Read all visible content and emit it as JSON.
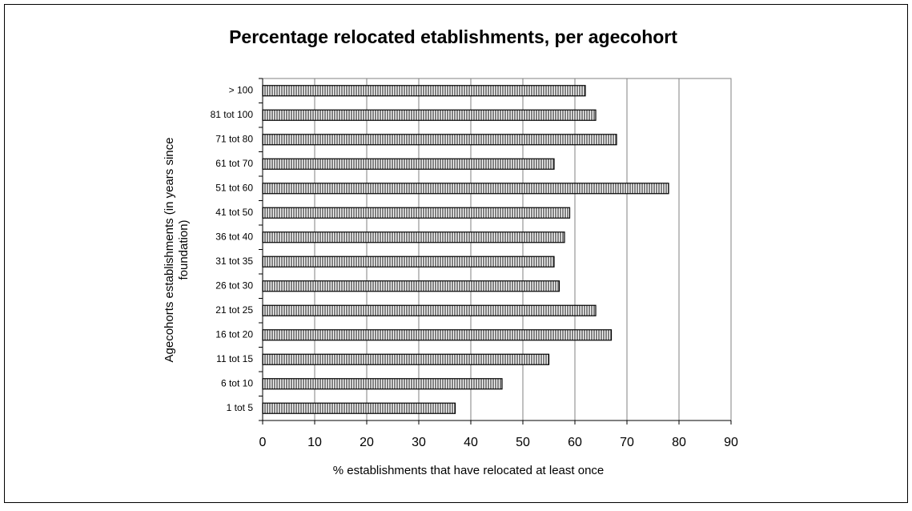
{
  "chart_data": {
    "type": "bar",
    "orientation": "horizontal",
    "title": "Percentage relocated etablishments, per agecohort",
    "x_label": "% establishments that have relocated at least once",
    "y_label": [
      "Agecohorts establishments (in years since",
      "foundation)"
    ],
    "categories": [
      "1 tot 5",
      "6 tot 10",
      "11 tot 15",
      "16 tot 20",
      "21 tot 25",
      "26 tot 30",
      "31 tot 35",
      "36 tot 40",
      "41 tot 50",
      "51 tot 60",
      "61 tot 70",
      "71 tot 80",
      "81 tot 100",
      "> 100"
    ],
    "values": [
      37,
      46,
      55,
      67,
      64,
      57,
      56,
      58,
      59,
      78,
      56,
      68,
      64,
      62
    ],
    "color": "#808080",
    "xlim": [
      0,
      90
    ],
    "xticks": [
      0,
      10,
      20,
      30,
      40,
      50,
      60,
      70,
      80,
      90
    ],
    "grid": true
  }
}
